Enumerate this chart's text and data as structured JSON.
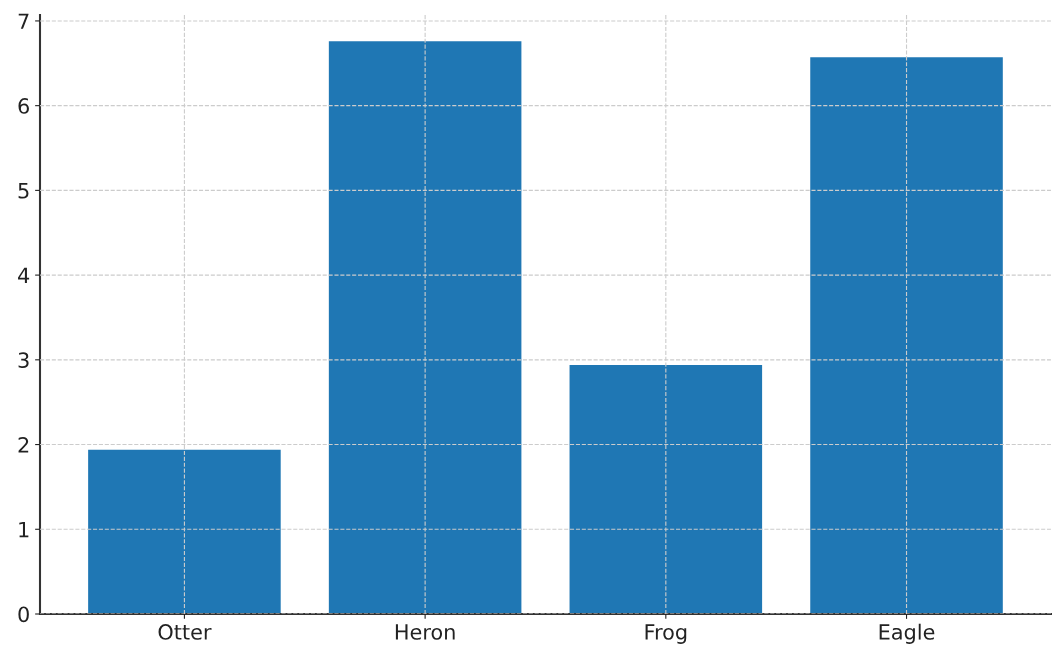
{
  "chart_data": {
    "type": "bar",
    "categories": [
      "Otter",
      "Heron",
      "Frog",
      "Eagle"
    ],
    "values": [
      1.94,
      6.76,
      2.94,
      6.57
    ],
    "color": "#1f77b4",
    "ylim": [
      0,
      7.07
    ],
    "yticks": [
      0,
      1,
      2,
      3,
      4,
      5,
      6,
      7
    ],
    "grid": true
  }
}
